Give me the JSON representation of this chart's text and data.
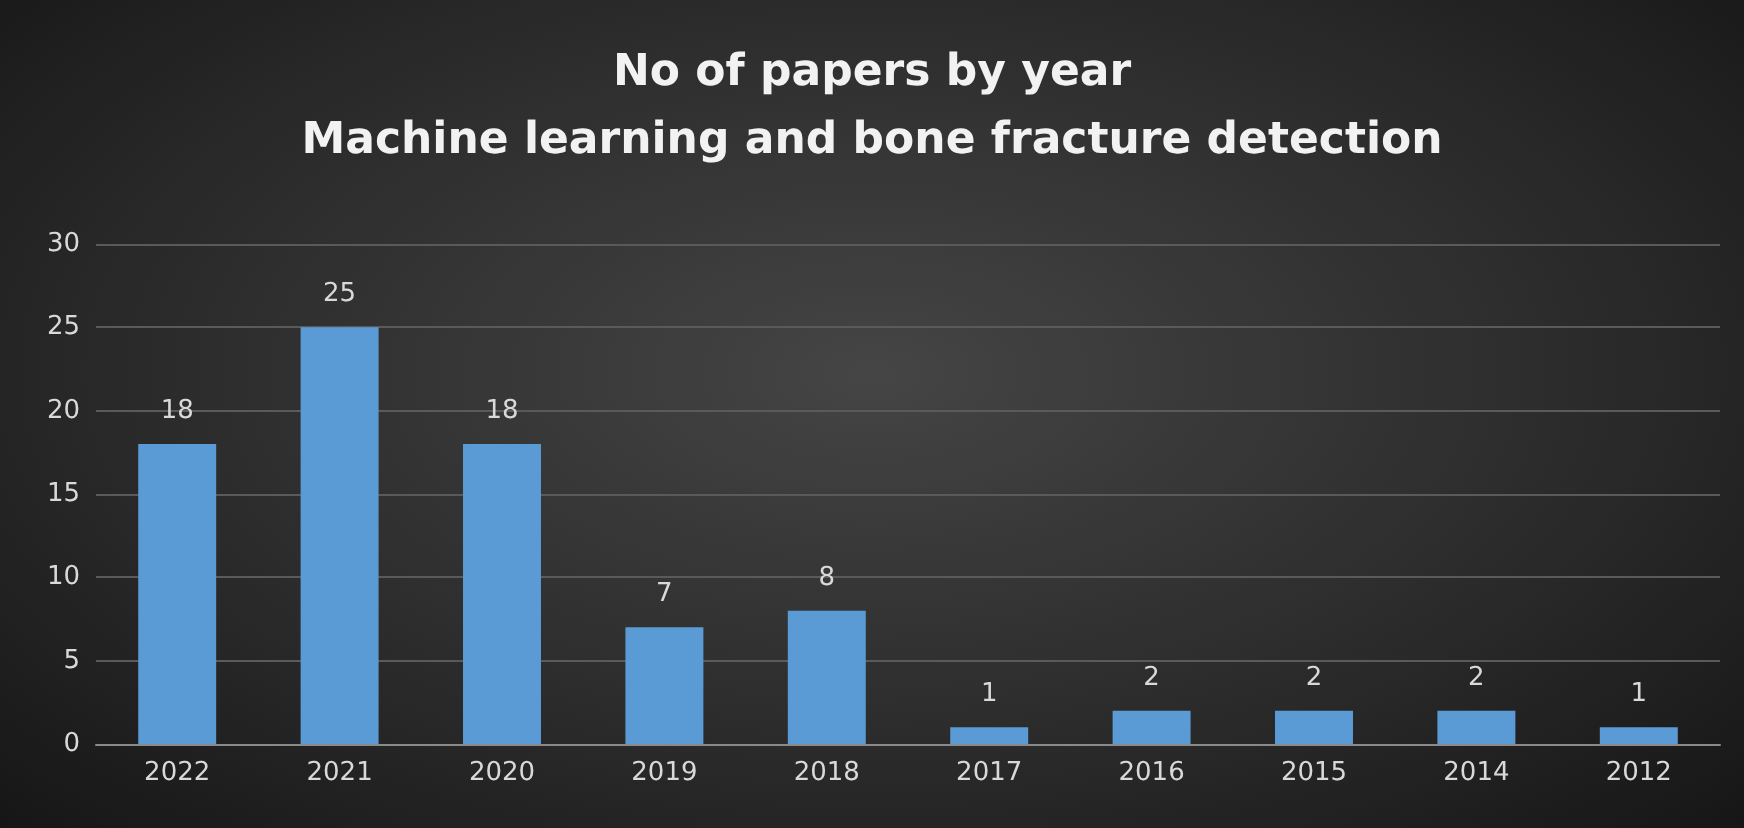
{
  "chart_data": {
    "type": "bar",
    "title": "No of papers by year",
    "subtitle": "Machine learning and bone fracture detection",
    "categories": [
      "2022",
      "2021",
      "2020",
      "2019",
      "2018",
      "2017",
      "2016",
      "2015",
      "2014",
      "2012"
    ],
    "values": [
      18,
      25,
      18,
      7,
      8,
      1,
      2,
      2,
      2,
      1
    ],
    "color": "#5b9bd5",
    "ylim": [
      0,
      30
    ],
    "yticks": [
      0,
      5,
      10,
      15,
      20,
      25,
      30
    ],
    "grid": "y",
    "data_labels": true
  }
}
